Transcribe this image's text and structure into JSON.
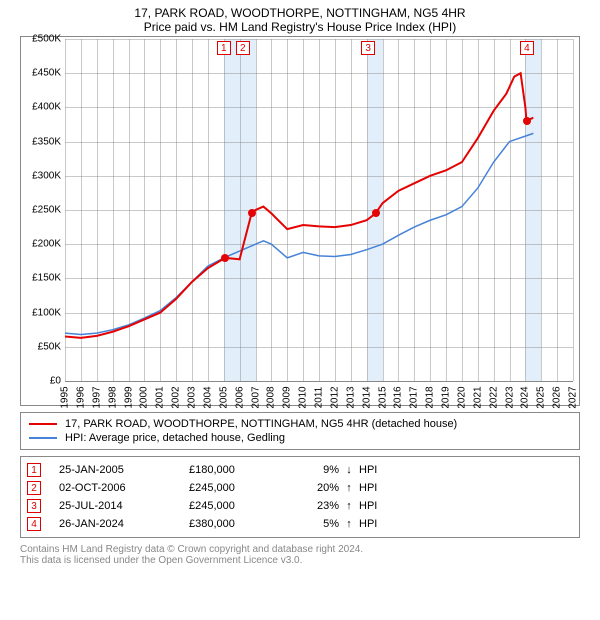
{
  "title": "17, PARK ROAD, WOODTHORPE, NOTTINGHAM, NG5 4HR",
  "subtitle": "Price paid vs. HM Land Registry's House Price Index (HPI)",
  "title_fontsize": 12,
  "chart": {
    "type": "line",
    "background_color": "#ffffff",
    "border_color": "#888888",
    "grid_color": "#888888",
    "axis_font_size": 10,
    "ylim": [
      0,
      500000
    ],
    "ytick_step": 50000,
    "yticks": [
      0,
      50000,
      100000,
      150000,
      200000,
      250000,
      300000,
      350000,
      400000,
      450000,
      500000
    ],
    "ytick_labels": [
      "£0",
      "£50K",
      "£100K",
      "£150K",
      "£200K",
      "£250K",
      "£300K",
      "£350K",
      "£400K",
      "£450K",
      "£500K"
    ],
    "xlim": [
      1995,
      2027
    ],
    "xticks": [
      1995,
      1996,
      1997,
      1998,
      1999,
      2000,
      2001,
      2002,
      2003,
      2004,
      2005,
      2006,
      2007,
      2008,
      2009,
      2010,
      2011,
      2012,
      2013,
      2014,
      2015,
      2016,
      2017,
      2018,
      2019,
      2020,
      2021,
      2022,
      2023,
      2024,
      2025,
      2026,
      2027
    ],
    "shade_years": [
      2005,
      2006,
      2014,
      2024
    ],
    "shade_color": "#e3eefb",
    "markers": [
      {
        "n": "1",
        "x_year": 2005.0
      },
      {
        "n": "2",
        "x_year": 2006.2
      },
      {
        "n": "3",
        "x_year": 2014.1
      },
      {
        "n": "4",
        "x_year": 2024.1
      }
    ],
    "marker_border_color": "#e00000",
    "marker_text_color": "#e00000",
    "series": [
      {
        "name": "property",
        "label": "17, PARK ROAD, WOODTHORPE, NOTTINGHAM, NG5 4HR (detached house)",
        "color": "#e40202",
        "line_width": 2,
        "points": [
          [
            1995.0,
            65000
          ],
          [
            1996.0,
            63000
          ],
          [
            1997.0,
            66000
          ],
          [
            1998.0,
            72000
          ],
          [
            1999.0,
            80000
          ],
          [
            2000.0,
            90000
          ],
          [
            2001.0,
            100000
          ],
          [
            2002.0,
            120000
          ],
          [
            2003.0,
            145000
          ],
          [
            2004.0,
            165000
          ],
          [
            2005.083,
            180000
          ],
          [
            2006.0,
            178000
          ],
          [
            2006.752,
            245000
          ],
          [
            2007.0,
            250000
          ],
          [
            2007.5,
            255000
          ],
          [
            2008.0,
            245000
          ],
          [
            2009.0,
            222000
          ],
          [
            2010.0,
            228000
          ],
          [
            2011.0,
            226000
          ],
          [
            2012.0,
            225000
          ],
          [
            2013.0,
            228000
          ],
          [
            2014.0,
            235000
          ],
          [
            2014.562,
            245000
          ],
          [
            2015.0,
            260000
          ],
          [
            2016.0,
            278000
          ],
          [
            2017.0,
            289000
          ],
          [
            2018.0,
            300000
          ],
          [
            2019.0,
            308000
          ],
          [
            2020.0,
            320000
          ],
          [
            2021.0,
            355000
          ],
          [
            2022.0,
            395000
          ],
          [
            2022.8,
            420000
          ],
          [
            2023.3,
            445000
          ],
          [
            2023.7,
            450000
          ],
          [
            2024.0,
            400000
          ],
          [
            2024.071,
            380000
          ],
          [
            2024.5,
            385000
          ]
        ],
        "sale_points": [
          [
            2005.083,
            180000
          ],
          [
            2006.752,
            245000
          ],
          [
            2014.562,
            245000
          ],
          [
            2024.071,
            380000
          ]
        ]
      },
      {
        "name": "hpi",
        "label": "HPI: Average price, detached house, Gedling",
        "color": "#4682d8",
        "line_width": 1.5,
        "points": [
          [
            1995.0,
            70000
          ],
          [
            1996.0,
            68000
          ],
          [
            1997.0,
            70000
          ],
          [
            1998.0,
            75000
          ],
          [
            1999.0,
            82000
          ],
          [
            2000.0,
            92000
          ],
          [
            2001.0,
            103000
          ],
          [
            2002.0,
            122000
          ],
          [
            2003.0,
            145000
          ],
          [
            2004.0,
            168000
          ],
          [
            2005.0,
            180000
          ],
          [
            2006.0,
            190000
          ],
          [
            2007.0,
            200000
          ],
          [
            2007.5,
            205000
          ],
          [
            2008.0,
            200000
          ],
          [
            2009.0,
            180000
          ],
          [
            2010.0,
            188000
          ],
          [
            2011.0,
            183000
          ],
          [
            2012.0,
            182000
          ],
          [
            2013.0,
            185000
          ],
          [
            2014.0,
            192000
          ],
          [
            2015.0,
            200000
          ],
          [
            2016.0,
            213000
          ],
          [
            2017.0,
            225000
          ],
          [
            2018.0,
            235000
          ],
          [
            2019.0,
            243000
          ],
          [
            2020.0,
            255000
          ],
          [
            2021.0,
            282000
          ],
          [
            2022.0,
            320000
          ],
          [
            2023.0,
            350000
          ],
          [
            2024.0,
            358000
          ],
          [
            2024.5,
            362000
          ]
        ]
      }
    ]
  },
  "legend": {
    "series1_label": "17, PARK ROAD, WOODTHORPE, NOTTINGHAM, NG5 4HR (detached house)",
    "series1_color": "#e40202",
    "series2_label": "HPI: Average price, detached house, Gedling",
    "series2_color": "#4682d8"
  },
  "events": [
    {
      "n": "1",
      "date": "25-JAN-2005",
      "price": "£180,000",
      "pct": "9%",
      "dir": "↓",
      "hpi": "HPI"
    },
    {
      "n": "2",
      "date": "02-OCT-2006",
      "price": "£245,000",
      "pct": "20%",
      "dir": "↑",
      "hpi": "HPI"
    },
    {
      "n": "3",
      "date": "25-JUL-2014",
      "price": "£245,000",
      "pct": "23%",
      "dir": "↑",
      "hpi": "HPI"
    },
    {
      "n": "4",
      "date": "26-JAN-2024",
      "price": "£380,000",
      "pct": "5%",
      "dir": "↑",
      "hpi": "HPI"
    }
  ],
  "footer_line1": "Contains HM Land Registry data © Crown copyright and database right 2024.",
  "footer_line2": "This data is licensed under the Open Government Licence v3.0."
}
